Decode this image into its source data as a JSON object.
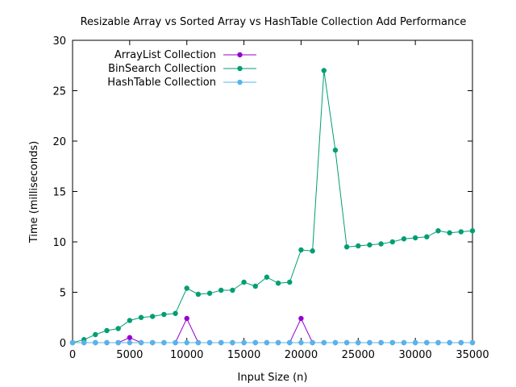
{
  "chart_data": {
    "type": "line",
    "title": "Resizable Array vs Sorted Array vs HashTable Collection Add Performance",
    "xlabel": "Input Size (n)",
    "ylabel": "Time (milliseconds)",
    "xlim": [
      0,
      35000
    ],
    "ylim": [
      0,
      30
    ],
    "xticks": [
      0,
      5000,
      10000,
      15000,
      20000,
      25000,
      30000,
      35000
    ],
    "yticks": [
      0,
      5,
      10,
      15,
      20,
      25,
      30
    ],
    "grid": false,
    "legend_position": "top-left",
    "x": [
      0,
      1000,
      2000,
      3000,
      4000,
      5000,
      6000,
      7000,
      8000,
      9000,
      10000,
      11000,
      12000,
      13000,
      14000,
      15000,
      16000,
      17000,
      18000,
      19000,
      20000,
      21000,
      22000,
      23000,
      24000,
      25000,
      26000,
      27000,
      28000,
      29000,
      30000,
      31000,
      32000,
      33000,
      34000,
      35000
    ],
    "series": [
      {
        "name": "ArrayList Collection",
        "color": "#9400d3",
        "values": [
          0,
          0,
          0,
          0,
          0,
          0.5,
          0,
          0,
          0,
          0,
          2.4,
          0,
          0,
          0,
          0,
          0,
          0,
          0,
          0,
          0,
          2.4,
          0,
          0,
          0,
          0,
          0,
          0,
          0,
          0,
          0,
          0,
          0,
          0,
          0,
          0,
          0
        ]
      },
      {
        "name": "BinSearch Collection",
        "color": "#009e73",
        "values": [
          0,
          0.3,
          0.8,
          1.2,
          1.4,
          2.2,
          2.5,
          2.6,
          2.8,
          2.9,
          5.4,
          4.8,
          4.9,
          5.2,
          5.2,
          6.0,
          5.6,
          6.5,
          5.9,
          6.0,
          9.2,
          9.1,
          27.0,
          19.1,
          9.5,
          9.6,
          9.7,
          9.8,
          10.0,
          10.3,
          10.4,
          10.5,
          11.1,
          10.9,
          11.0,
          11.1
        ]
      },
      {
        "name": "HashTable Collection",
        "color": "#56b4e9",
        "values": [
          0,
          0,
          0,
          0,
          0,
          0,
          0,
          0,
          0,
          0,
          0,
          0,
          0,
          0,
          0,
          0,
          0,
          0,
          0,
          0,
          0,
          0,
          0,
          0,
          0,
          0,
          0,
          0,
          0,
          0,
          0,
          0,
          0,
          0,
          0,
          0
        ]
      }
    ]
  }
}
